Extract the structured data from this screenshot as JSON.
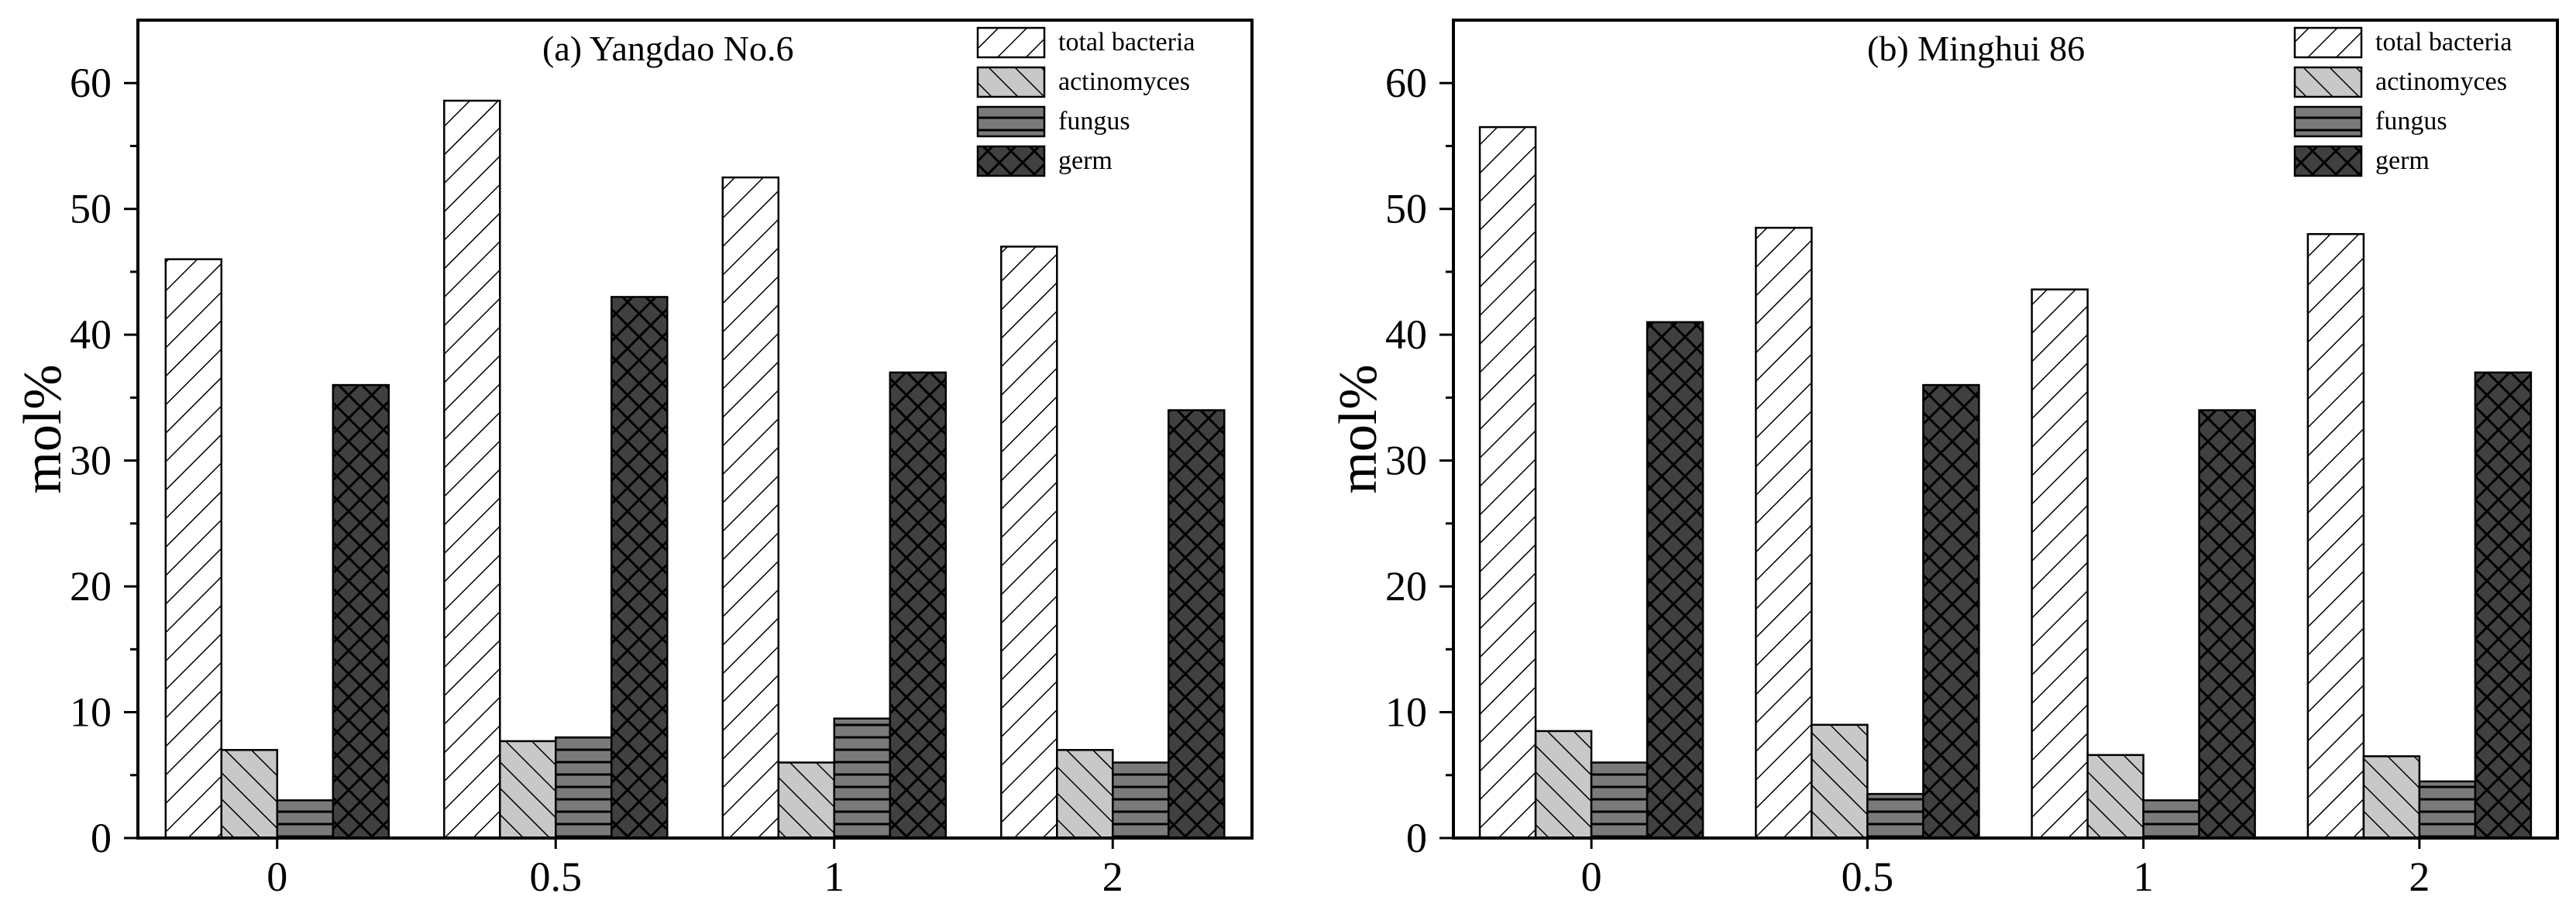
{
  "chart_data": [
    {
      "type": "bar",
      "title": "(a) Yangdao No.6",
      "xlabel": "",
      "ylabel": "mol%",
      "ylim": [
        0,
        65
      ],
      "yticks": [
        0,
        10,
        20,
        30,
        40,
        50,
        60
      ],
      "categories": [
        "0",
        "0.5",
        "1",
        "2"
      ],
      "grid": false,
      "legend_position": "top-right",
      "series": [
        {
          "name": "total bacteria",
          "pattern": "diag",
          "color": "#ffffff",
          "values": [
            46,
            58.6,
            52.5,
            47
          ]
        },
        {
          "name": "actinomyces",
          "pattern": "antidiag",
          "color": "#c8c8c8",
          "values": [
            7,
            7.7,
            6,
            7
          ]
        },
        {
          "name": "fungus",
          "pattern": "horiz",
          "color": "#7a7a7a",
          "values": [
            3,
            8,
            9.5,
            6
          ]
        },
        {
          "name": "germ",
          "pattern": "cross",
          "color": "#404040",
          "values": [
            36,
            43,
            37,
            34
          ]
        }
      ]
    },
    {
      "type": "bar",
      "title": "(b) Minghui 86",
      "xlabel": "",
      "ylabel": "mol%",
      "ylim": [
        0,
        65
      ],
      "yticks": [
        0,
        10,
        20,
        30,
        40,
        50,
        60
      ],
      "categories": [
        "0",
        "0.5",
        "1",
        "2"
      ],
      "grid": false,
      "legend_position": "top-right",
      "series": [
        {
          "name": "total bacteria",
          "pattern": "diag",
          "color": "#ffffff",
          "values": [
            56.5,
            48.5,
            43.6,
            48
          ]
        },
        {
          "name": "actinomyces",
          "pattern": "antidiag",
          "color": "#c8c8c8",
          "values": [
            8.5,
            9,
            6.6,
            6.5
          ]
        },
        {
          "name": "fungus",
          "pattern": "horiz",
          "color": "#7a7a7a",
          "values": [
            6,
            3.5,
            3,
            4.5
          ]
        },
        {
          "name": "germ",
          "pattern": "cross",
          "color": "#404040",
          "values": [
            41,
            36,
            34,
            37
          ]
        }
      ]
    }
  ]
}
